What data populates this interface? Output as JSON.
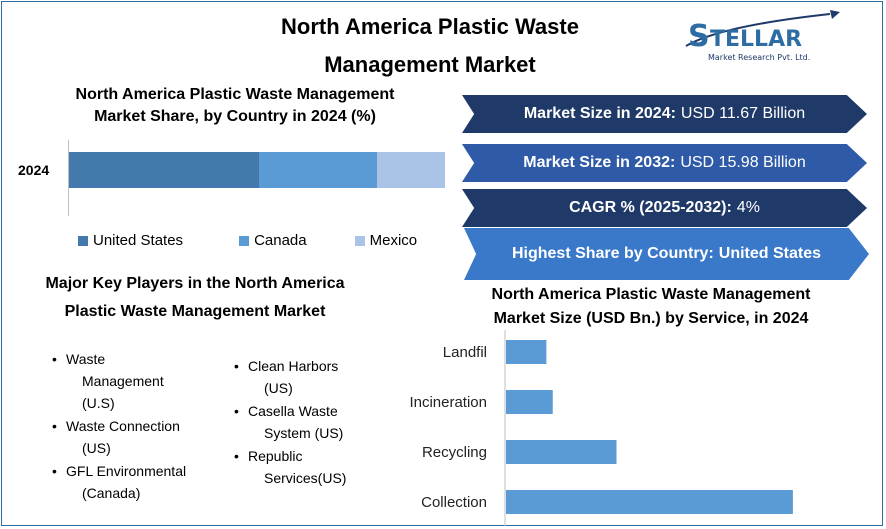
{
  "title_line1": "North America Plastic Waste",
  "title_line2": "Management Market",
  "logo": {
    "name": "STELLAR",
    "tagline": "Market Research Pvt. Ltd."
  },
  "colors": {
    "us": "#4479ad",
    "canada": "#5b9bd5",
    "mexico": "#a9c4e6",
    "banner_dark": "#1f3a68",
    "banner_mid": "#2e5aa8",
    "banner_light": "#3a78c9"
  },
  "banners": [
    {
      "key": "Market Size in 2024:",
      "value": "USD 11.67 Billion"
    },
    {
      "key": "Market Size in 2032:",
      "value": "USD 15.98 Billion"
    },
    {
      "key": "CAGR % (2025-2032):",
      "value": "4%"
    },
    {
      "key": "Highest Share by Country:",
      "value": "United States"
    }
  ],
  "players": {
    "title_line1": "Major Key Players in the North America",
    "title_line2": "Plastic Waste Management Market",
    "col1": [
      {
        "l1": "Waste",
        "l2": "Management",
        "l3": "(U.S)"
      },
      {
        "l1": "Waste Connection",
        "l2": "(US)"
      },
      {
        "l1": "GFL Environmental",
        "l2": "(Canada)"
      }
    ],
    "col2": [
      {
        "l1": "Clean Harbors",
        "l2": "(US)"
      },
      {
        "l1": "Casella Waste",
        "l2": "System (US)"
      },
      {
        "l1": "Republic",
        "l2": "Services(US)"
      }
    ]
  },
  "chart_data": [
    {
      "type": "bar",
      "orientation": "horizontal-stacked",
      "title_line1": "North America Plastic Waste Management",
      "title_line2": "Market Share, by Country in 2024 (%)",
      "categories": [
        "2024"
      ],
      "series": [
        {
          "name": "United States",
          "values": [
            50.5
          ]
        },
        {
          "name": "Canada",
          "values": [
            31.5
          ]
        },
        {
          "name": "Mexico",
          "values": [
            18
          ]
        }
      ],
      "legend": "bottom"
    },
    {
      "type": "bar",
      "orientation": "horizontal",
      "title_line1": "North America Plastic Waste Management",
      "title_line2": "Market Size (USD Bn.) by Service, in 2024",
      "categories": [
        "Landfil",
        "Incineration",
        "Recycling",
        "Collection"
      ],
      "values": [
        0.95,
        1.1,
        2.6,
        6.75
      ],
      "xlim": [
        0,
        8
      ]
    }
  ]
}
